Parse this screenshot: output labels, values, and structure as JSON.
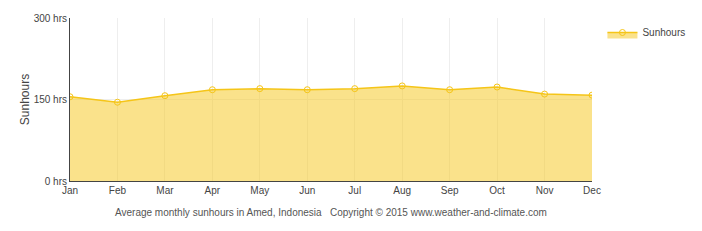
{
  "chart_data": {
    "type": "area",
    "categories": [
      "Jan",
      "Feb",
      "Mar",
      "Apr",
      "May",
      "Jun",
      "Jul",
      "Aug",
      "Sep",
      "Oct",
      "Nov",
      "Dec"
    ],
    "series": [
      {
        "name": "Sunhours",
        "color": "#F5C518",
        "marker": "circle",
        "values": [
          155,
          145,
          157,
          168,
          170,
          168,
          170,
          175,
          168,
          173,
          160,
          158
        ]
      }
    ],
    "ylabel": "Sunhours",
    "ylim": [
      0,
      300
    ],
    "yticks": [
      {
        "value": 0,
        "label": "0 hrs"
      },
      {
        "value": 150,
        "label": "150 hrs"
      },
      {
        "value": 300,
        "label": "300 hrs"
      }
    ],
    "annotations": [
      "Average monthly sunhours in Amed, Indonesia   Copyright © 2015 www.weather-and-climate.com"
    ],
    "grid": true,
    "legend": "top right"
  }
}
